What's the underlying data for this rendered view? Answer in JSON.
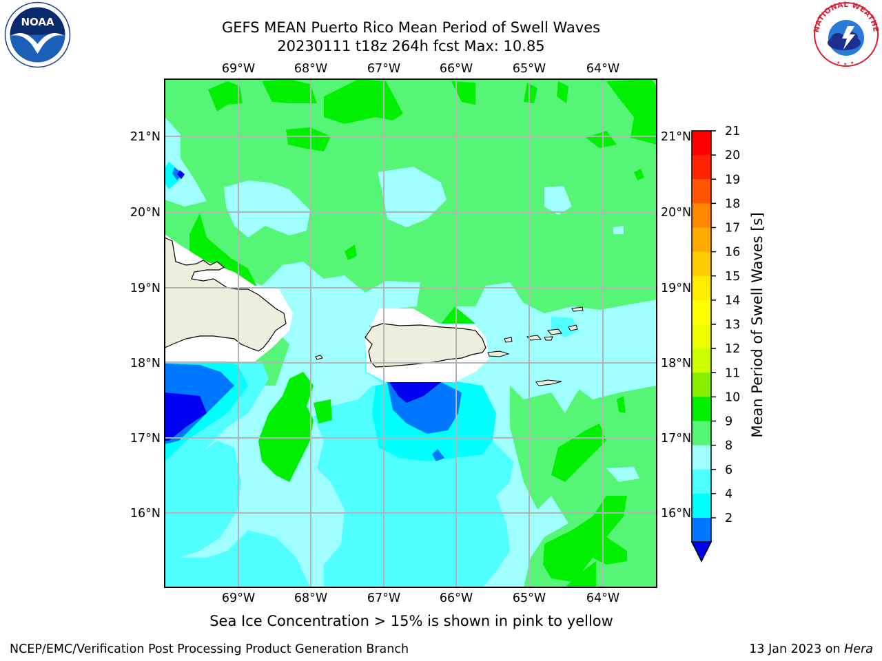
{
  "header": {
    "title_line1": "GEFS MEAN Puerto Rico Mean Period of Swell Waves",
    "title_line2": "20230111 t18z 264h fcst   Max: 10.85"
  },
  "map": {
    "lon_labels": [
      "69°W",
      "68°W",
      "67°W",
      "66°W",
      "65°W",
      "64°W"
    ],
    "lat_labels": [
      "21°N",
      "20°N",
      "19°N",
      "18°N",
      "17°N",
      "16°N"
    ],
    "colors": {
      "deep_blue": "#0000f0",
      "blue": "#0077ff",
      "cyan": "#00ffff",
      "light_cyan": "#50ffff",
      "pale_cyan": "#a0ffff",
      "light_green": "#55f575",
      "green": "#00f000",
      "land": "#eeeedd",
      "grid": "#b4b4b4"
    }
  },
  "colorbar": {
    "label": "Mean Period of Swell Waves [s]",
    "ticks": [
      "21",
      "20",
      "19",
      "18",
      "17",
      "16",
      "15",
      "14",
      "13",
      "12",
      "11",
      "10",
      "9",
      "8",
      "6",
      "4",
      "2"
    ],
    "colors": [
      "#ff0000",
      "#ff2200",
      "#ff5500",
      "#ff8800",
      "#ffaa00",
      "#ffcc00",
      "#ffee00",
      "#ffff00",
      "#eeff00",
      "#ccff00",
      "#88ee00",
      "#00f000",
      "#55f575",
      "#a0ffff",
      "#50ffff",
      "#00ffff",
      "#0077ff"
    ],
    "extend_color": "#0000f0"
  },
  "subtitle": "Sea Ice Concentration > 15% is shown in pink to yellow",
  "footer": {
    "left": "NCEP/EMC/Verification Post Processing Product Generation Branch",
    "date": "13 Jan 2023 on ",
    "machine": "Hera"
  },
  "logos": {
    "noaa_text": "NOAA",
    "nws_text": "NATIONAL WEATHER SERVICE"
  }
}
